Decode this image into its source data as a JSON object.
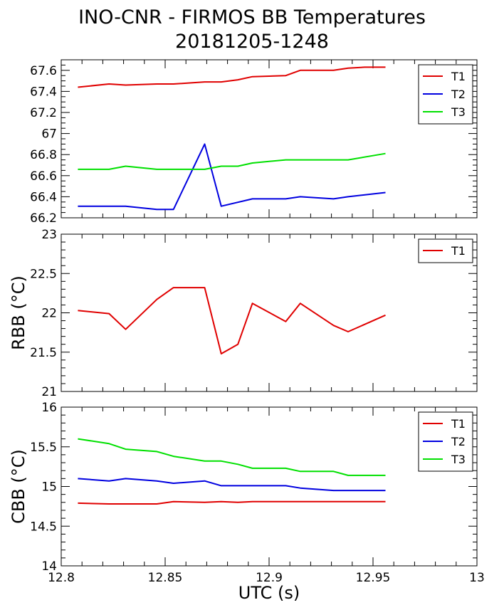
{
  "title": "INO-CNR - FIRMOS BB Temperatures",
  "subtitle": "20181205-1248",
  "chart_data": [
    {
      "type": "line",
      "title": "",
      "xlabel": "",
      "ylabel": "",
      "xlim": [
        12.8,
        13.0
      ],
      "ylim": [
        66.2,
        67.7
      ],
      "yticks": [
        "66.2",
        "66.4",
        "66.6",
        "66.8",
        "67",
        "67.2",
        "67.4",
        "67.6"
      ],
      "grid": false,
      "legend": "top-right",
      "series": [
        {
          "name": "T1",
          "color": "#e00000",
          "x": [
            12.808,
            12.823,
            12.831,
            12.846,
            12.854,
            12.869,
            12.877,
            12.885,
            12.892,
            12.908,
            12.915,
            12.931,
            12.938,
            12.946,
            12.956
          ],
          "y": [
            67.44,
            67.47,
            67.46,
            67.47,
            67.47,
            67.49,
            67.49,
            67.51,
            67.54,
            67.55,
            67.6,
            67.6,
            67.62,
            67.63,
            67.63
          ]
        },
        {
          "name": "T2",
          "color": "#0000e0",
          "x": [
            12.808,
            12.831,
            12.846,
            12.854,
            12.869,
            12.877,
            12.892,
            12.908,
            12.915,
            12.931,
            12.938,
            12.956
          ],
          "y": [
            66.31,
            66.31,
            66.28,
            66.28,
            66.9,
            66.31,
            66.38,
            66.38,
            66.4,
            66.38,
            66.4,
            66.44
          ]
        },
        {
          "name": "T3",
          "color": "#00e000",
          "x": [
            12.808,
            12.823,
            12.831,
            12.846,
            12.854,
            12.869,
            12.877,
            12.885,
            12.892,
            12.908,
            12.938,
            12.956
          ],
          "y": [
            66.66,
            66.66,
            66.69,
            66.66,
            66.66,
            66.66,
            66.69,
            66.69,
            66.72,
            66.75,
            66.75,
            66.81
          ]
        }
      ]
    },
    {
      "type": "line",
      "title": "",
      "xlabel": "",
      "ylabel": "RBB (°C)",
      "xlim": [
        12.8,
        13.0
      ],
      "ylim": [
        21.0,
        23.0
      ],
      "yticks": [
        "21",
        "21.5",
        "22",
        "22.5",
        "23"
      ],
      "grid": false,
      "legend": "top-right",
      "series": [
        {
          "name": "T1",
          "color": "#e00000",
          "x": [
            12.808,
            12.823,
            12.831,
            12.846,
            12.854,
            12.869,
            12.877,
            12.885,
            12.892,
            12.908,
            12.915,
            12.931,
            12.938,
            12.956
          ],
          "y": [
            22.03,
            21.99,
            21.79,
            22.17,
            22.32,
            22.32,
            21.48,
            21.6,
            22.12,
            21.89,
            22.12,
            21.84,
            21.76,
            21.97
          ]
        }
      ]
    },
    {
      "type": "line",
      "title": "",
      "xlabel": "UTC (s)",
      "ylabel": "CBB (°C)",
      "xlim": [
        12.8,
        13.0
      ],
      "ylim": [
        14.0,
        16.0
      ],
      "yticks": [
        "14",
        "14.5",
        "15",
        "15.5",
        "16"
      ],
      "xticks": [
        "12.8",
        "12.85",
        "12.9",
        "12.95",
        "13"
      ],
      "grid": false,
      "legend": "top-right",
      "series": [
        {
          "name": "T1",
          "color": "#e00000",
          "x": [
            12.808,
            12.823,
            12.846,
            12.854,
            12.869,
            12.877,
            12.885,
            12.892,
            12.956
          ],
          "y": [
            14.79,
            14.78,
            14.78,
            14.81,
            14.8,
            14.81,
            14.8,
            14.81,
            14.81
          ]
        },
        {
          "name": "T2",
          "color": "#0000e0",
          "x": [
            12.808,
            12.823,
            12.831,
            12.846,
            12.854,
            12.869,
            12.877,
            12.892,
            12.908,
            12.915,
            12.931,
            12.956
          ],
          "y": [
            15.1,
            15.07,
            15.1,
            15.07,
            15.04,
            15.07,
            15.01,
            15.01,
            15.01,
            14.98,
            14.95,
            14.95
          ]
        },
        {
          "name": "T3",
          "color": "#00e000",
          "x": [
            12.808,
            12.823,
            12.831,
            12.846,
            12.854,
            12.869,
            12.877,
            12.885,
            12.892,
            12.908,
            12.915,
            12.931,
            12.938,
            12.956
          ],
          "y": [
            15.6,
            15.54,
            15.47,
            15.44,
            15.38,
            15.32,
            15.32,
            15.28,
            15.23,
            15.23,
            15.19,
            15.19,
            15.14,
            15.14
          ]
        }
      ]
    }
  ]
}
